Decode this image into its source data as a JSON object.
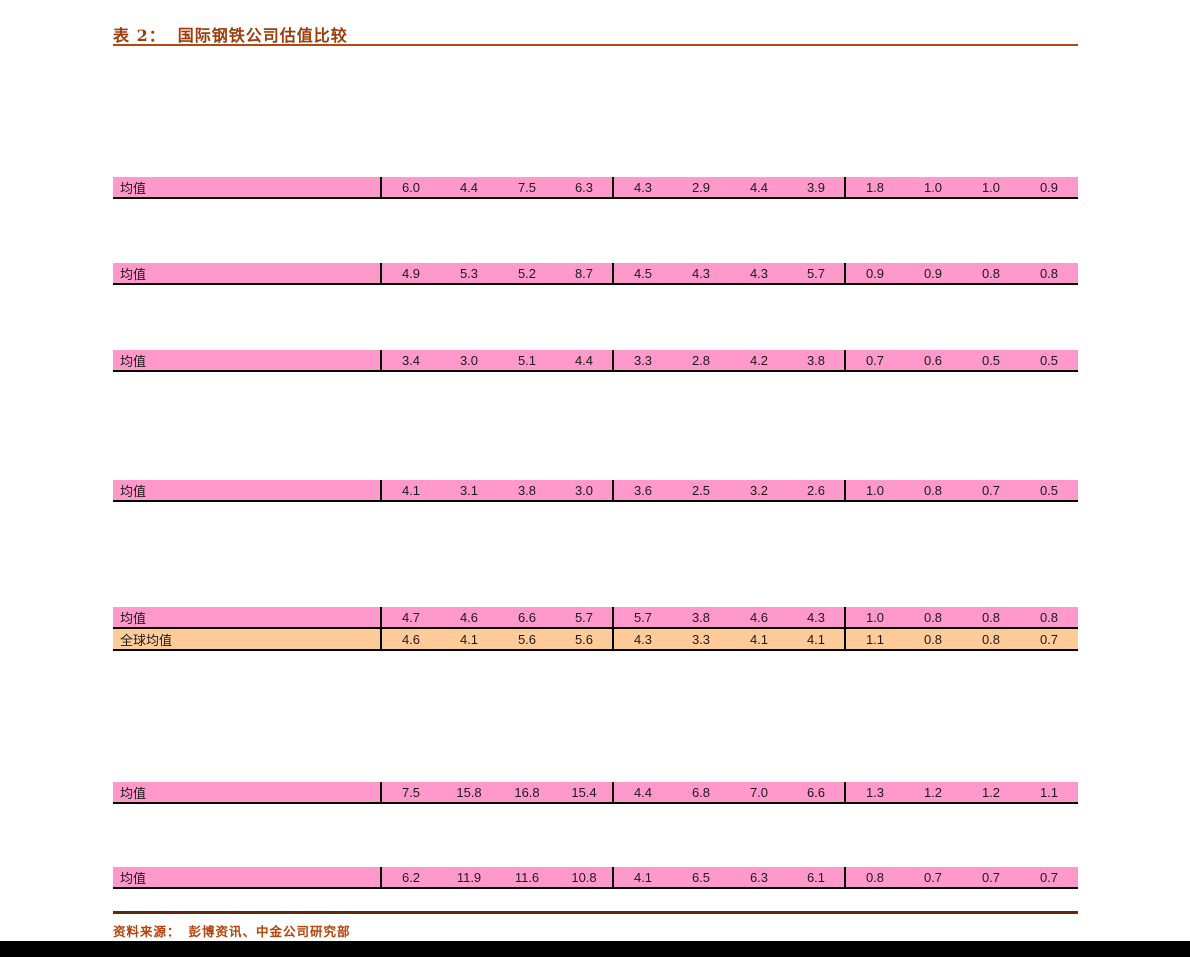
{
  "title": {
    "prefix": "表 2：",
    "text": "国际钢铁公司估值比较"
  },
  "colors": {
    "pink": "#ff99cc",
    "orange": "#ffcc99",
    "title-color": "#9e3b0b",
    "rule-top": "#b5480b",
    "rule-bottom": "#5e2a0b",
    "source-color": "#b5430a"
  },
  "table": {
    "rows": [
      {
        "label": "均值",
        "variant": "pink",
        "values": [
          "6.0",
          "4.4",
          "7.5",
          "6.3",
          "4.3",
          "2.9",
          "4.4",
          "3.9",
          "1.8",
          "1.0",
          "1.0",
          "0.9"
        ]
      },
      {
        "label": "均值",
        "variant": "pink",
        "values": [
          "4.9",
          "5.3",
          "5.2",
          "8.7",
          "4.5",
          "4.3",
          "4.3",
          "5.7",
          "0.9",
          "0.9",
          "0.8",
          "0.8"
        ]
      },
      {
        "label": "均值",
        "variant": "pink",
        "values": [
          "3.4",
          "3.0",
          "5.1",
          "4.4",
          "3.3",
          "2.8",
          "4.2",
          "3.8",
          "0.7",
          "0.6",
          "0.5",
          "0.5"
        ]
      },
      {
        "label": "均值",
        "variant": "pink",
        "values": [
          "4.1",
          "3.1",
          "3.8",
          "3.0",
          "3.6",
          "2.5",
          "3.2",
          "2.6",
          "1.0",
          "0.8",
          "0.7",
          "0.5"
        ]
      },
      {
        "label": "均值",
        "variant": "pink",
        "values": [
          "4.7",
          "4.6",
          "6.6",
          "5.7",
          "5.7",
          "3.8",
          "4.6",
          "4.3",
          "1.0",
          "0.8",
          "0.8",
          "0.8"
        ]
      },
      {
        "label": "全球均值",
        "variant": "orange",
        "values": [
          "4.6",
          "4.1",
          "5.6",
          "5.6",
          "4.3",
          "3.3",
          "4.1",
          "4.1",
          "1.1",
          "0.8",
          "0.8",
          "0.7"
        ]
      },
      {
        "label": "均值",
        "variant": "pink",
        "values": [
          "7.5",
          "15.8",
          "16.8",
          "15.4",
          "4.4",
          "6.8",
          "7.0",
          "6.6",
          "1.3",
          "1.2",
          "1.2",
          "1.1"
        ]
      },
      {
        "label": "均值",
        "variant": "pink",
        "values": [
          "6.2",
          "11.9",
          "11.6",
          "10.8",
          "4.1",
          "6.5",
          "6.3",
          "6.1",
          "0.8",
          "0.7",
          "0.7",
          "0.7"
        ]
      }
    ]
  },
  "source": {
    "label": "资料来源：",
    "text": "彭博资讯、中金公司研究部"
  }
}
